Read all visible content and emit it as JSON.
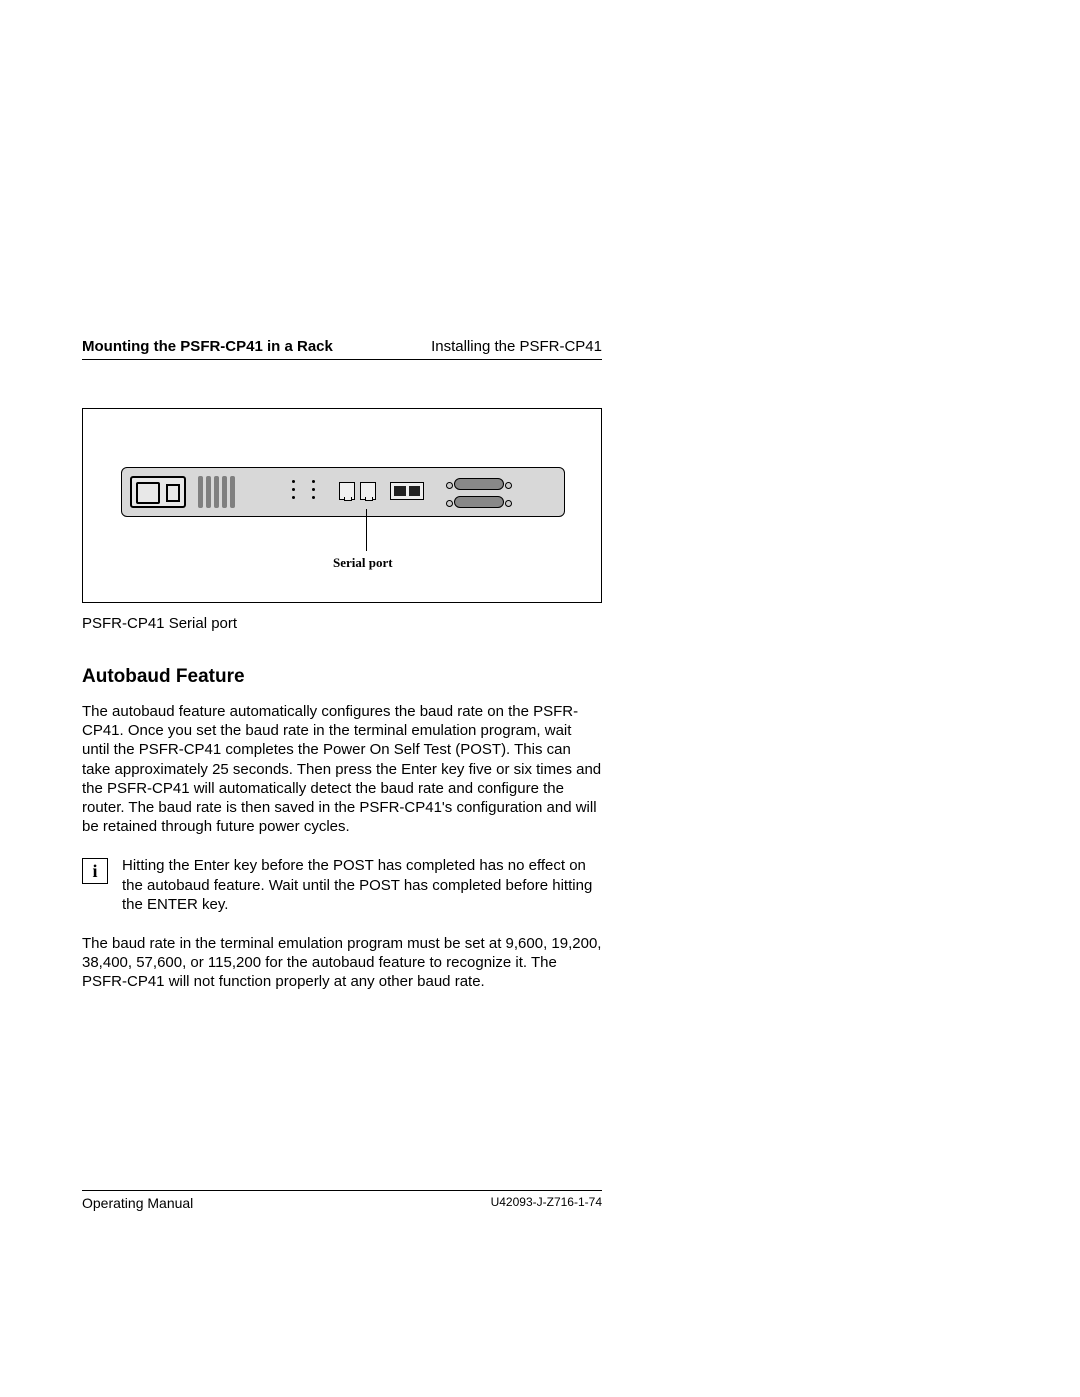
{
  "header": {
    "left": "Mounting the PSFR-CP41 in a Rack",
    "right": "Installing the PSFR-CP41"
  },
  "figure": {
    "callout": "Serial port",
    "caption": "PSFR-CP41 Serial port"
  },
  "section": {
    "heading": "Autobaud Feature",
    "para1": "The autobaud feature automatically configures the baud rate on the PSFR-CP41. Once you set the baud rate in the terminal emulation program, wait until the PSFR-CP41 completes the Power On Self Test (POST). This can take approximately 25 seconds. Then press the Enter key five or six times and the PSFR-CP41 will automatically detect the baud rate and configure the router. The baud rate is then saved in the PSFR-CP41's configuration and will be retained through future power cycles.",
    "info_icon": "i",
    "info_text": "Hitting the Enter key before the POST has completed has no effect on the autobaud feature. Wait until the POST has completed before hitting the ENTER key.",
    "para2": "The baud rate in the terminal emulation program must be set at 9,600, 19,200, 38,400, 57,600, or 115,200 for the autobaud feature to recognize it. The PSFR-CP41 will not function properly at any other baud rate."
  },
  "footer": {
    "left": "Operating Manual",
    "right": "U42093-J-Z716-1-74"
  }
}
